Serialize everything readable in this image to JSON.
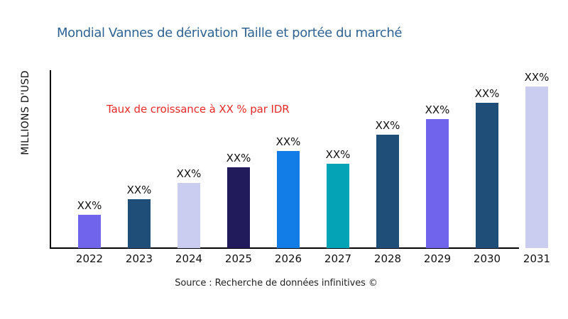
{
  "page": {
    "background": "#ffffff"
  },
  "header": {
    "title": "Mondial Vannes de dérivation Taille et portée du marché",
    "title_color": "#2E6394"
  },
  "annotation": {
    "text": "Taux de croissance à XX % par IDR",
    "color": "#EA2A29"
  },
  "chart_data": {
    "type": "bar",
    "title": "Mondial Vannes de dérivation Taille et portée du marché",
    "ylabel": "MILLIONS D'USD",
    "xlabel": "",
    "categories": [
      "2022",
      "2023",
      "2024",
      "2025",
      "2026",
      "2027",
      "2028",
      "2029",
      "2030",
      "2031"
    ],
    "values": [
      47,
      69,
      92,
      114,
      137,
      119,
      160,
      182,
      205,
      228
    ],
    "value_labels": [
      "XX%",
      "XX%",
      "XX%",
      "XX%",
      "XX%",
      "XX%",
      "XX%",
      "XX%",
      "XX%",
      "XX%"
    ],
    "bar_colors": [
      "#7164EC",
      "#1F4E79",
      "#CBCDF0",
      "#221B5B",
      "#127DE6",
      "#04A4B6",
      "#1F4E79",
      "#7164EC",
      "#1F4E79",
      "#CBCDF0"
    ],
    "ylim": [
      0,
      253
    ],
    "grid": false,
    "legend": "none",
    "axis_color": "#000000",
    "annotation": "Taux de croissance à XX % par IDR"
  },
  "footer": {
    "source": "Source : Recherche de données infinitives ©"
  }
}
